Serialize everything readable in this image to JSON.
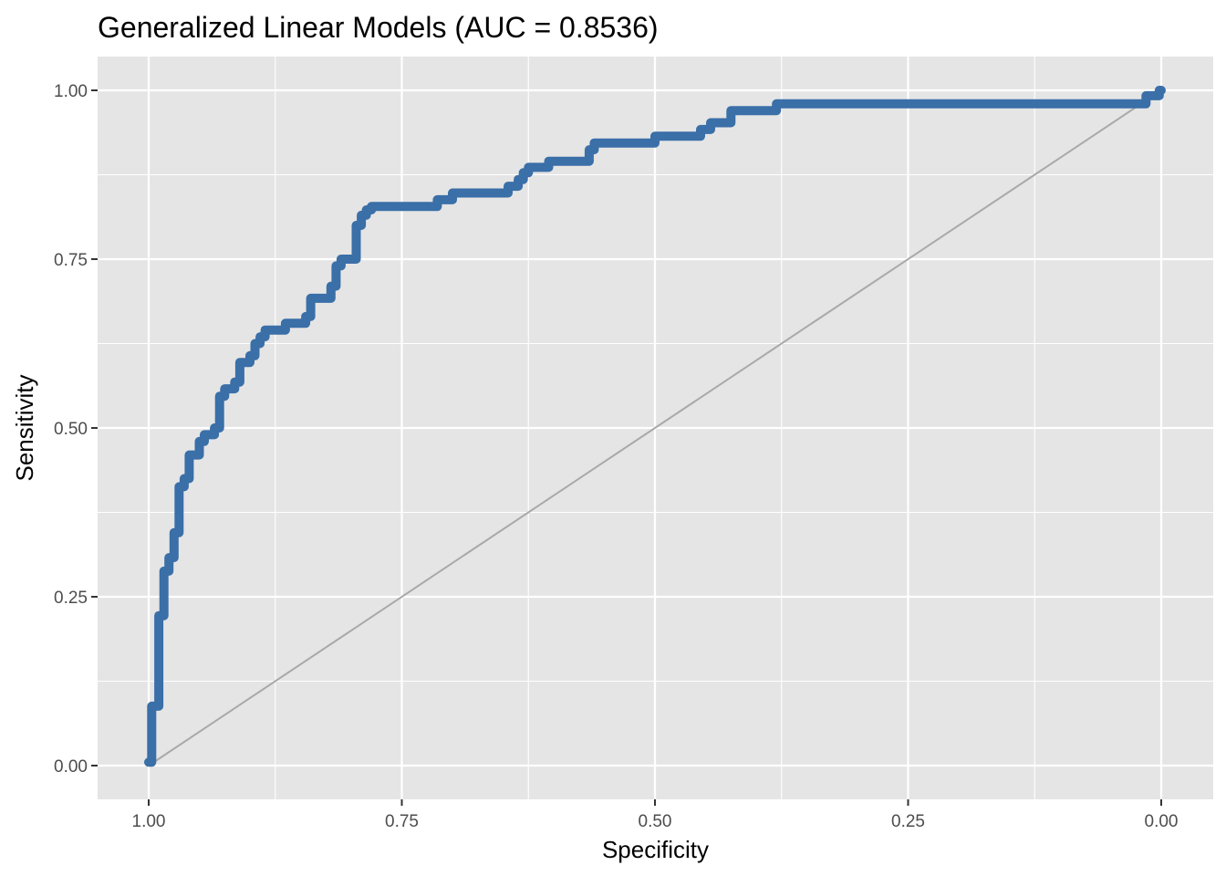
{
  "chart_data": {
    "type": "line",
    "title": "Generalized Linear Models (AUC = 0.8536)",
    "xlabel": "Specificity",
    "ylabel": "Sensitivity",
    "xlim": [
      1.0,
      0.0
    ],
    "ylim": [
      0.0,
      1.0
    ],
    "x_reversed": true,
    "x_ticks": [
      "1.00",
      "0.75",
      "0.50",
      "0.25",
      "0.00"
    ],
    "x_tick_values": [
      1.0,
      0.75,
      0.5,
      0.25,
      0.0
    ],
    "y_ticks": [
      "0.00",
      "0.25",
      "0.50",
      "0.75",
      "1.00"
    ],
    "y_tick_values": [
      0.0,
      0.25,
      0.5,
      0.75,
      1.0
    ],
    "grid": true,
    "legend": "none",
    "colors": {
      "roc": "#3a6fa8",
      "diagonal": "#a9a9a9",
      "panel": "#e5e5e5",
      "grid": "#ffffff"
    },
    "series": [
      {
        "role": "roc-curve",
        "points": [
          [
            1.0,
            0.005
          ],
          [
            0.997,
            0.005
          ],
          [
            0.997,
            0.088
          ],
          [
            0.99,
            0.088
          ],
          [
            0.99,
            0.222
          ],
          [
            0.985,
            0.222
          ],
          [
            0.985,
            0.288
          ],
          [
            0.98,
            0.288
          ],
          [
            0.98,
            0.308
          ],
          [
            0.975,
            0.308
          ],
          [
            0.975,
            0.345
          ],
          [
            0.97,
            0.345
          ],
          [
            0.97,
            0.413
          ],
          [
            0.965,
            0.413
          ],
          [
            0.965,
            0.425
          ],
          [
            0.96,
            0.425
          ],
          [
            0.96,
            0.46
          ],
          [
            0.95,
            0.46
          ],
          [
            0.95,
            0.48
          ],
          [
            0.945,
            0.48
          ],
          [
            0.945,
            0.49
          ],
          [
            0.935,
            0.49
          ],
          [
            0.935,
            0.5
          ],
          [
            0.93,
            0.5
          ],
          [
            0.93,
            0.547
          ],
          [
            0.925,
            0.547
          ],
          [
            0.925,
            0.558
          ],
          [
            0.915,
            0.558
          ],
          [
            0.915,
            0.568
          ],
          [
            0.91,
            0.568
          ],
          [
            0.91,
            0.597
          ],
          [
            0.9,
            0.597
          ],
          [
            0.9,
            0.607
          ],
          [
            0.895,
            0.607
          ],
          [
            0.895,
            0.625
          ],
          [
            0.89,
            0.625
          ],
          [
            0.89,
            0.635
          ],
          [
            0.885,
            0.635
          ],
          [
            0.885,
            0.645
          ],
          [
            0.865,
            0.645
          ],
          [
            0.865,
            0.655
          ],
          [
            0.845,
            0.655
          ],
          [
            0.845,
            0.665
          ],
          [
            0.84,
            0.665
          ],
          [
            0.84,
            0.692
          ],
          [
            0.82,
            0.692
          ],
          [
            0.82,
            0.71
          ],
          [
            0.815,
            0.71
          ],
          [
            0.815,
            0.74
          ],
          [
            0.81,
            0.74
          ],
          [
            0.81,
            0.75
          ],
          [
            0.795,
            0.75
          ],
          [
            0.795,
            0.8
          ],
          [
            0.79,
            0.8
          ],
          [
            0.79,
            0.815
          ],
          [
            0.785,
            0.815
          ],
          [
            0.785,
            0.823
          ],
          [
            0.78,
            0.823
          ],
          [
            0.78,
            0.828
          ],
          [
            0.715,
            0.828
          ],
          [
            0.715,
            0.838
          ],
          [
            0.7,
            0.838
          ],
          [
            0.7,
            0.848
          ],
          [
            0.645,
            0.848
          ],
          [
            0.645,
            0.858
          ],
          [
            0.635,
            0.858
          ],
          [
            0.635,
            0.868
          ],
          [
            0.63,
            0.868
          ],
          [
            0.63,
            0.878
          ],
          [
            0.625,
            0.878
          ],
          [
            0.625,
            0.886
          ],
          [
            0.605,
            0.886
          ],
          [
            0.605,
            0.895
          ],
          [
            0.565,
            0.895
          ],
          [
            0.565,
            0.912
          ],
          [
            0.56,
            0.912
          ],
          [
            0.56,
            0.922
          ],
          [
            0.5,
            0.922
          ],
          [
            0.5,
            0.932
          ],
          [
            0.455,
            0.932
          ],
          [
            0.455,
            0.942
          ],
          [
            0.445,
            0.942
          ],
          [
            0.445,
            0.952
          ],
          [
            0.425,
            0.952
          ],
          [
            0.425,
            0.97
          ],
          [
            0.38,
            0.97
          ],
          [
            0.38,
            0.98
          ],
          [
            0.015,
            0.98
          ],
          [
            0.015,
            0.992
          ],
          [
            0.002,
            0.992
          ],
          [
            0.002,
            1.0
          ],
          [
            0.0,
            1.0
          ]
        ]
      },
      {
        "role": "reference-diagonal",
        "points": [
          [
            1.0,
            0.0
          ],
          [
            0.0,
            1.0
          ]
        ]
      }
    ]
  }
}
